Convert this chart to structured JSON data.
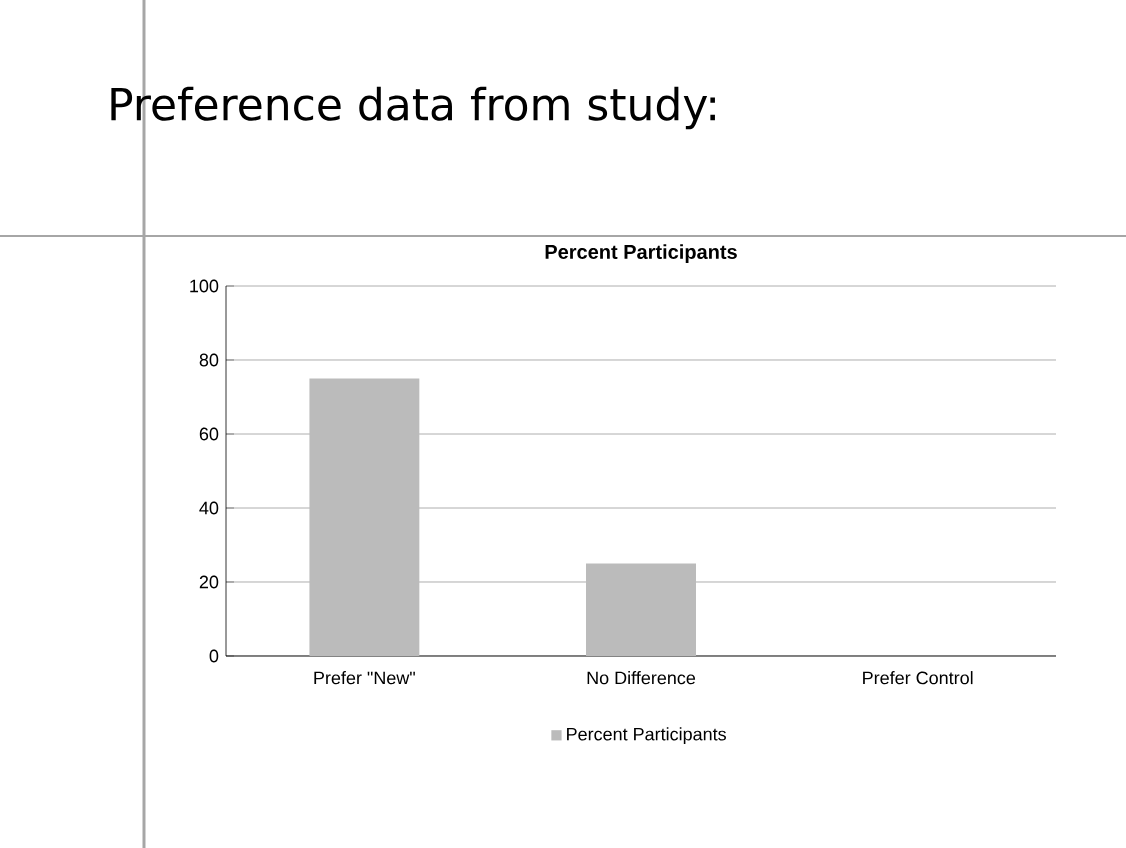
{
  "chart_data": {
    "type": "bar",
    "title": "Preference data from study:",
    "subtitle": "Percent Participants",
    "categories": [
      "Prefer \"New\"",
      "No Difference",
      "Prefer Control"
    ],
    "series": [
      {
        "name": "Percent Participants",
        "color": "#bbbbbb",
        "values": [
          75,
          25,
          0
        ]
      }
    ],
    "ylim": [
      0,
      100
    ],
    "yticks": [
      0,
      20,
      40,
      60,
      80,
      100
    ],
    "grid": "y",
    "legend": "bottom"
  }
}
